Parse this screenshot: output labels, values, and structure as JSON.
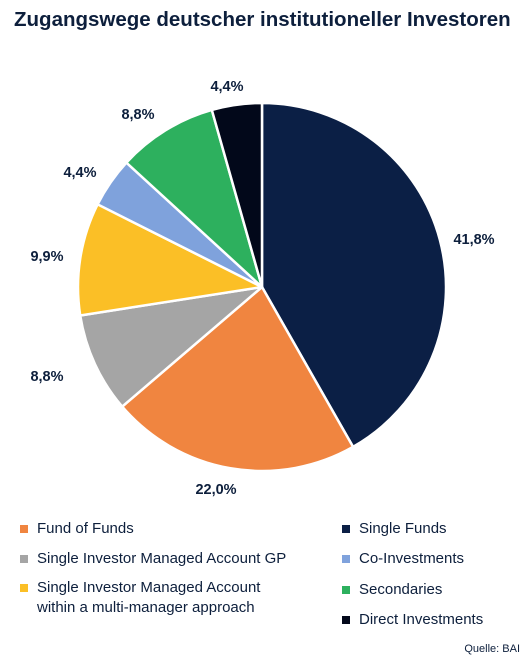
{
  "chart_data": {
    "type": "pie",
    "title": "Zugangswege deutscher institutioneller Investoren",
    "slices": [
      {
        "name": "Single Funds",
        "value": 41.8,
        "label": "41,8%",
        "color": "#0b1f45"
      },
      {
        "name": "Fund of Funds",
        "value": 22.0,
        "label": "22,0%",
        "color": "#f08540"
      },
      {
        "name": "Single Investor Managed Account GP",
        "value": 8.8,
        "label": "8,8%",
        "color": "#a5a5a5"
      },
      {
        "name": "Single Investor Managed Account within a multi-manager approach",
        "value": 9.9,
        "label": "9,9%",
        "color": "#fbbf26"
      },
      {
        "name": "Co-Investments",
        "value": 4.4,
        "label": "4,4%",
        "color": "#7fa2dc"
      },
      {
        "name": "Secondaries",
        "value": 8.8,
        "label": "8,8%",
        "color": "#2db05e"
      },
      {
        "name": "Direct Investments",
        "value": 4.4,
        "label": "4,4%",
        "color": "#02081a"
      }
    ],
    "start_angle_deg": 0,
    "direction": "clockwise",
    "legend_position": "bottom",
    "legend": [
      {
        "label": "Fund of Funds",
        "color": "#f08540"
      },
      {
        "label": "Single Funds",
        "color": "#0b1f45"
      },
      {
        "label": "Single Investor Managed Account GP",
        "color": "#a5a5a5"
      },
      {
        "label": "Co-Investments",
        "color": "#7fa2dc"
      },
      {
        "label": "Single Investor Managed Account\nwithin a multi-manager approach",
        "color": "#fbbf26"
      },
      {
        "label": "Secondaries",
        "color": "#2db05e"
      },
      {
        "label": "Direct Investments",
        "color": "#02081a"
      }
    ]
  },
  "source": "Quelle: BAI"
}
